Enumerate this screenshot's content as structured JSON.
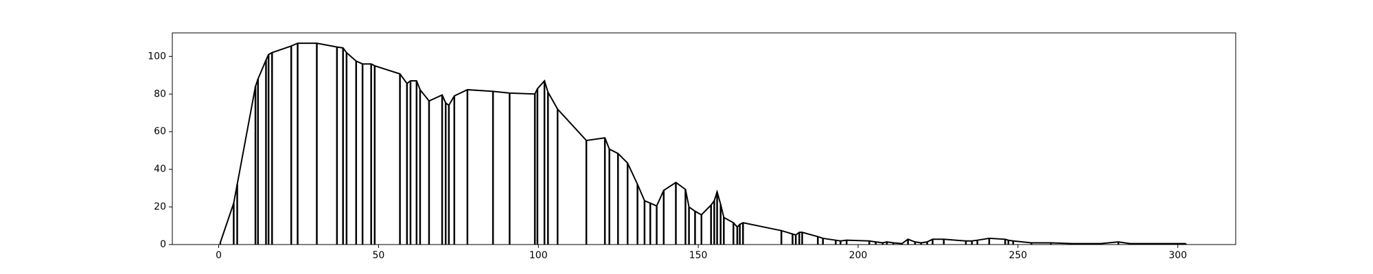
{
  "chart_data": {
    "type": "line",
    "drop_lines": true,
    "color": "#000000",
    "x": [
      0.5,
      4.7,
      5.8,
      11.5,
      12.3,
      14.8,
      15.6,
      16.7,
      22.7,
      24.7,
      30.7,
      37,
      38.9,
      40,
      43,
      45,
      47.7,
      48.8,
      56.7,
      58.9,
      60,
      61.9,
      63,
      65.8,
      69.9,
      71,
      72,
      73.7,
      77.8,
      85.8,
      91,
      98.9,
      99.7,
      101.9,
      103,
      106,
      115,
      120.8,
      122.2,
      124.9,
      127.9,
      131,
      133.2,
      135,
      137,
      139.2,
      143,
      146,
      147.1,
      149,
      151,
      154,
      155,
      155.9,
      157,
      158,
      161,
      162.2,
      163,
      164,
      176,
      179.5,
      180.5,
      181.6,
      182.5,
      187.4,
      189,
      193,
      194.5,
      196.4,
      203.5,
      205.5,
      207.7,
      209,
      211,
      213.7,
      215.6,
      217.8,
      219.7,
      221.6,
      223.3,
      226.8,
      233.7,
      235.6,
      237.3,
      241,
      246,
      247,
      248.5,
      254.2,
      260.3,
      267,
      275.9,
      281.4,
      285,
      302.5
    ],
    "values": [
      1,
      22,
      32,
      84,
      88,
      98,
      101,
      102,
      105.5,
      107,
      107,
      105,
      104.5,
      102,
      97.5,
      96,
      96,
      95,
      90.7,
      85.6,
      87,
      87,
      82.3,
      76.3,
      79.5,
      75.3,
      74,
      79,
      82.3,
      81.4,
      80.5,
      80,
      82.8,
      87,
      81,
      72,
      55.3,
      56.7,
      50.7,
      48.4,
      43.3,
      32,
      23.3,
      22,
      20.5,
      28.8,
      33,
      29.3,
      20,
      17.7,
      15.8,
      21,
      23.3,
      28,
      21.4,
      14.4,
      11.6,
      9.3,
      10.7,
      11.6,
      7.4,
      5.6,
      5.1,
      6.5,
      6.5,
      4.2,
      3.3,
      2.3,
      1.9,
      2.3,
      1.9,
      1.4,
      0.9,
      1.4,
      0.9,
      0.5,
      2.8,
      1.4,
      0.9,
      1.4,
      2.8,
      2.8,
      1.9,
      1.9,
      2.3,
      3.3,
      2.8,
      2.3,
      1.9,
      0.9,
      0.9,
      0.5,
      0.5,
      1.4,
      0.5,
      0.5
    ],
    "xlim": [
      -14.5,
      318.1
    ],
    "xticks": [
      0,
      50,
      100,
      150,
      200,
      250,
      300
    ],
    "ylim": [
      0,
      112.5
    ],
    "yticks": [
      0,
      20,
      40,
      60,
      80,
      100
    ]
  }
}
